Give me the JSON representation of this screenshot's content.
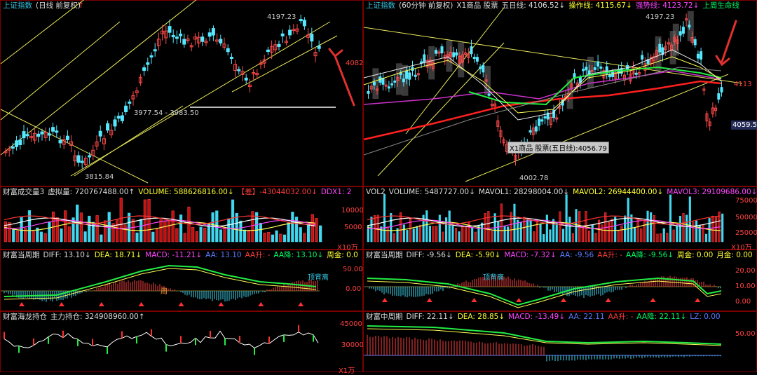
{
  "left": {
    "k_header": [
      {
        "t": "上证指数",
        "c": "c-cyan"
      },
      {
        "t": "(日线 前复权)",
        "c": "c-white"
      }
    ],
    "hi_label": "4197.23",
    "lo_label": "3815.84",
    "range_label": "3977.54 - 3983.50",
    "price_axis": "4082",
    "vol_header": [
      {
        "t": "财富成交量3",
        "c": "c-white"
      },
      {
        "t": "虚拟量: 720767488.00↑",
        "c": "c-white"
      },
      {
        "t": "VOLUME: 588626816.00↓",
        "c": "c-yellow"
      },
      {
        "t": "【差】-43044032.00↓",
        "c": "c-red"
      },
      {
        "t": "DDX1: 2",
        "c": "c-mag"
      }
    ],
    "vol_axis": [
      "10000",
      "5000"
    ],
    "vol_unit": "X10万",
    "macd_header": [
      {
        "t": "财富当周期",
        "c": "c-white"
      },
      {
        "t": "DIFF: 13.10↓",
        "c": "c-white"
      },
      {
        "t": "DEA: 18.71↓",
        "c": "c-yellow"
      },
      {
        "t": "MACD: -11.21↓",
        "c": "c-mag"
      },
      {
        "t": "AA: 13.10",
        "c": "c-blue"
      },
      {
        "t": "AA升: -",
        "c": "c-red"
      },
      {
        "t": "AA降: 13.10↓",
        "c": "c-green"
      },
      {
        "t": "周金: 0.0",
        "c": "c-yellow"
      }
    ],
    "macd_axis": [
      "50.00",
      "0.00"
    ],
    "macd_note": "顶背离",
    "macd_note2": "周",
    "hl_header": [
      {
        "t": "财富海龙持仓",
        "c": "c-white"
      },
      {
        "t": "主力持仓: 324908960.00↑",
        "c": "c-white"
      }
    ],
    "hl_axis": [
      "45000",
      "30000"
    ],
    "hl_unit": "X1万"
  },
  "right": {
    "k_header": [
      {
        "t": "上证指数",
        "c": "c-cyan"
      },
      {
        "t": "(60分钟 前复权)",
        "c": "c-white"
      },
      {
        "t": "X1商品 股票",
        "c": "c-white"
      },
      {
        "t": "五日线: 4106.52↓",
        "c": "c-white"
      },
      {
        "t": "操作线: 4115.67↓",
        "c": "c-yellow"
      },
      {
        "t": "强势线: 4123.72↓",
        "c": "c-mag"
      },
      {
        "t": "上周生命线",
        "c": "c-green"
      }
    ],
    "hi_label": "4197.23",
    "lo_label": "4002.78",
    "tip_label": "X1商品 股票(五日线):4056.79",
    "price_axis": "4113",
    "price_box": "4059.5",
    "vol_header": [
      {
        "t": "VOL2",
        "c": "c-white"
      },
      {
        "t": "VOLUME: 5487727.00↓",
        "c": "c-white"
      },
      {
        "t": "MAVOL1: 28298004.00↓",
        "c": "c-white"
      },
      {
        "t": "MAVOL2: 26944400.00↓",
        "c": "c-yellow"
      },
      {
        "t": "MAVOL3: 29109686.00↓",
        "c": "c-mag"
      }
    ],
    "vol_axis": [
      "75000",
      "50000",
      "25000"
    ],
    "vol_unit": "X10万",
    "macd_header": [
      {
        "t": "财富当周期",
        "c": "c-white"
      },
      {
        "t": "DIFF: -9.56↓",
        "c": "c-white"
      },
      {
        "t": "DEA: -5.90↓",
        "c": "c-yellow"
      },
      {
        "t": "MACD: -7.32↓",
        "c": "c-mag"
      },
      {
        "t": "AA: -9.56",
        "c": "c-blue"
      },
      {
        "t": "AA升: -",
        "c": "c-red"
      },
      {
        "t": "AA降: -9.56↓",
        "c": "c-green"
      },
      {
        "t": "周金: 0.00",
        "c": "c-yellow"
      },
      {
        "t": "月金: 0.00",
        "c": "c-yellow"
      }
    ],
    "macd_axis": [
      "20.00",
      "10.00",
      "0.00"
    ],
    "macd_note": "顶背离",
    "mid_header": [
      {
        "t": "财富中周期",
        "c": "c-white"
      },
      {
        "t": "DIFF: 22.11↓",
        "c": "c-white"
      },
      {
        "t": "DEA: 28.85↓",
        "c": "c-yellow"
      },
      {
        "t": "MACD: -13.49↓",
        "c": "c-mag"
      },
      {
        "t": "AA: 22.11",
        "c": "c-blue"
      },
      {
        "t": "AA升: -",
        "c": "c-red"
      },
      {
        "t": "AA降: 22.11↓",
        "c": "c-green"
      },
      {
        "t": "LZ: 0.00",
        "c": "c-blue"
      }
    ],
    "mid_axis": [
      "50.00"
    ]
  },
  "chart_data": [
    {
      "type": "candlestick",
      "title": "上证指数(日线 前复权)",
      "high": 4197.23,
      "low": 3815.84,
      "levels": [
        "3977.54 - 3983.50"
      ],
      "ylabel_tick": 4082
    },
    {
      "type": "candlestick",
      "title": "上证指数(60分钟 前复权)",
      "high": 4197.23,
      "low": 4002.78,
      "series": [
        {
          "name": "五日线",
          "last": 4106.52
        },
        {
          "name": "操作线",
          "last": 4115.67
        },
        {
          "name": "强势线",
          "last": 4123.72
        }
      ],
      "ylabel_tick": 4113,
      "current": 4059.5
    },
    {
      "type": "bar",
      "title": "财富成交量3",
      "series": [
        {
          "name": "虚拟量",
          "last": 720767488.0
        },
        {
          "name": "VOLUME",
          "last": 588626816.0
        },
        {
          "name": "【差】",
          "last": -43044032.0
        }
      ],
      "yticks": [
        10000,
        5000
      ],
      "unit": "X10万"
    },
    {
      "type": "bar",
      "title": "VOL2",
      "series": [
        {
          "name": "VOLUME",
          "last": 5487727.0
        },
        {
          "name": "MAVOL1",
          "last": 28298004.0
        },
        {
          "name": "MAVOL2",
          "last": 26944400.0
        },
        {
          "name": "MAVOL3",
          "last": 29109686.0
        }
      ],
      "yticks": [
        75000,
        50000,
        25000
      ],
      "unit": "X10万"
    },
    {
      "type": "line",
      "title": "财富当周期 (日线)",
      "series": [
        {
          "name": "DIFF",
          "last": 13.1
        },
        {
          "name": "DEA",
          "last": 18.71
        },
        {
          "name": "MACD",
          "last": -11.21
        }
      ],
      "yticks": [
        50.0,
        0.0
      ]
    },
    {
      "type": "line",
      "title": "财富当周期 (60分钟)",
      "series": [
        {
          "name": "DIFF",
          "last": -9.56
        },
        {
          "name": "DEA",
          "last": -5.9
        },
        {
          "name": "MACD",
          "last": -7.32
        }
      ],
      "yticks": [
        20.0,
        10.0,
        0.0
      ]
    },
    {
      "type": "line",
      "title": "财富海龙持仓",
      "series": [
        {
          "name": "主力持仓",
          "last": 324908960.0
        }
      ],
      "yticks": [
        45000,
        30000
      ],
      "unit": "X1万"
    },
    {
      "type": "line",
      "title": "财富中周期",
      "series": [
        {
          "name": "DIFF",
          "last": 22.11
        },
        {
          "name": "DEA",
          "last": 28.85
        },
        {
          "name": "MACD",
          "last": -13.49
        }
      ],
      "yticks": [
        50.0
      ]
    }
  ]
}
